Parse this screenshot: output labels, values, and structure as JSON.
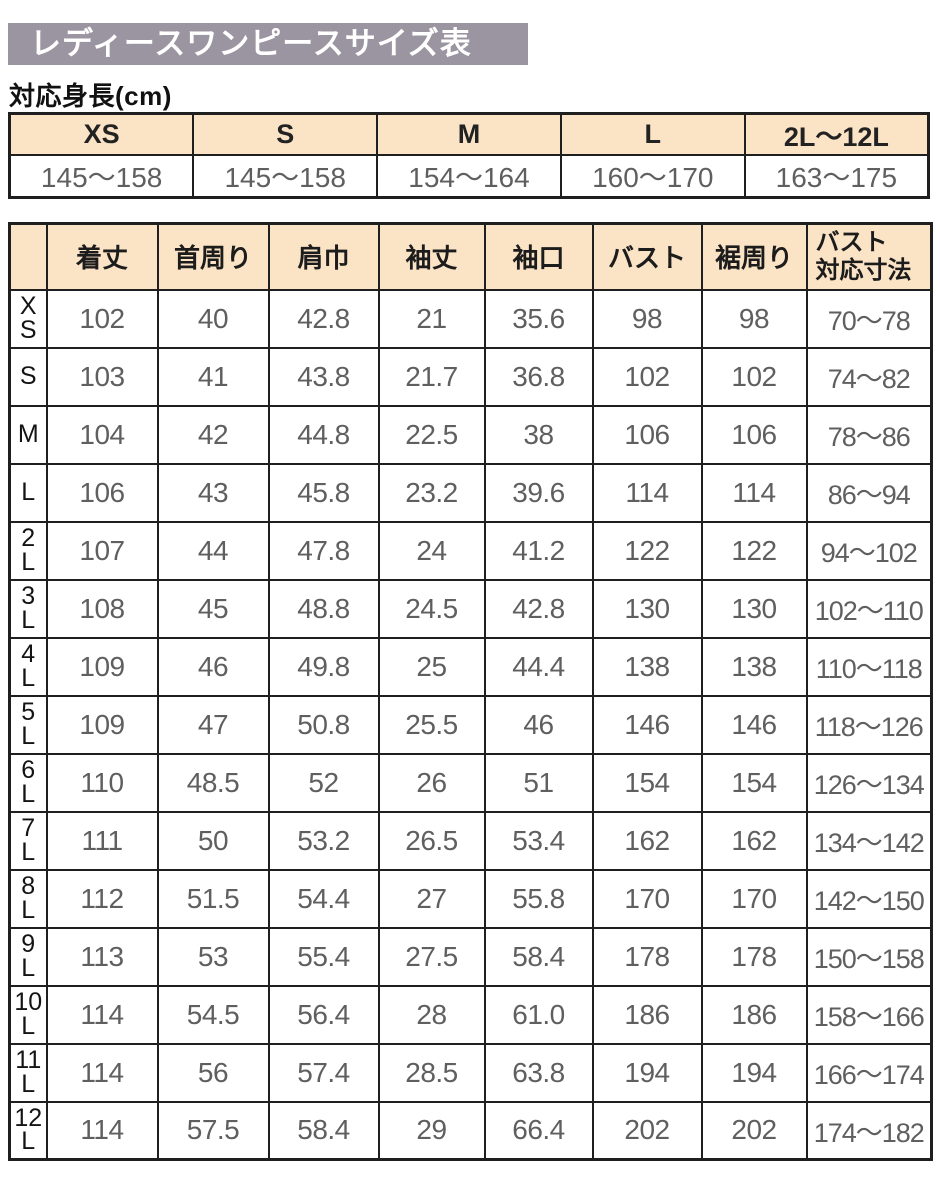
{
  "title": {
    "text": "レディースワンピースサイズ表"
  },
  "colors": {
    "title_bg": "#9B95A1",
    "title_text": "#FFFFFF",
    "header_bg": "#FBE3C5",
    "border": "#1F1F1F",
    "value_text": "#5F5F5F",
    "label_text": "#141414"
  },
  "height_section": {
    "label": "対応身長(cm)",
    "table": {
      "headers": [
        "XS",
        "S",
        "M",
        "L",
        "2L〜12L"
      ],
      "values": [
        "145〜158",
        "145〜158",
        "154〜164",
        "160〜170",
        "163〜175"
      ]
    }
  },
  "size_table": {
    "corner_label": "",
    "columns": [
      "着丈",
      "首周り",
      "肩巾",
      "袖丈",
      "袖口",
      "バスト",
      "裾周り",
      "バスト\n対応寸法"
    ],
    "rows": [
      {
        "size": "X\nS",
        "values": [
          "102",
          "40",
          "42.8",
          "21",
          "35.6",
          "98",
          "98",
          "70〜78"
        ]
      },
      {
        "size": "S",
        "values": [
          "103",
          "41",
          "43.8",
          "21.7",
          "36.8",
          "102",
          "102",
          "74〜82"
        ]
      },
      {
        "size": "M",
        "values": [
          "104",
          "42",
          "44.8",
          "22.5",
          "38",
          "106",
          "106",
          "78〜86"
        ]
      },
      {
        "size": "L",
        "values": [
          "106",
          "43",
          "45.8",
          "23.2",
          "39.6",
          "114",
          "114",
          "86〜94"
        ]
      },
      {
        "size": "2\nL",
        "values": [
          "107",
          "44",
          "47.8",
          "24",
          "41.2",
          "122",
          "122",
          "94〜102"
        ]
      },
      {
        "size": "3\nL",
        "values": [
          "108",
          "45",
          "48.8",
          "24.5",
          "42.8",
          "130",
          "130",
          "102〜110"
        ]
      },
      {
        "size": "4\nL",
        "values": [
          "109",
          "46",
          "49.8",
          "25",
          "44.4",
          "138",
          "138",
          "110〜118"
        ]
      },
      {
        "size": "5\nL",
        "values": [
          "109",
          "47",
          "50.8",
          "25.5",
          "46",
          "146",
          "146",
          "118〜126"
        ]
      },
      {
        "size": "6\nL",
        "values": [
          "110",
          "48.5",
          "52",
          "26",
          "51",
          "154",
          "154",
          "126〜134"
        ]
      },
      {
        "size": "7\nL",
        "values": [
          "111",
          "50",
          "53.2",
          "26.5",
          "53.4",
          "162",
          "162",
          "134〜142"
        ]
      },
      {
        "size": "8\nL",
        "values": [
          "112",
          "51.5",
          "54.4",
          "27",
          "55.8",
          "170",
          "170",
          "142〜150"
        ]
      },
      {
        "size": "9\nL",
        "values": [
          "113",
          "53",
          "55.4",
          "27.5",
          "58.4",
          "178",
          "178",
          "150〜158"
        ]
      },
      {
        "size": "10\nL",
        "values": [
          "114",
          "54.5",
          "56.4",
          "28",
          "61.0",
          "186",
          "186",
          "158〜166"
        ]
      },
      {
        "size": "11\nL",
        "values": [
          "114",
          "56",
          "57.4",
          "28.5",
          "63.8",
          "194",
          "194",
          "166〜174"
        ]
      },
      {
        "size": "12\nL",
        "values": [
          "114",
          "57.5",
          "58.4",
          "29",
          "66.4",
          "202",
          "202",
          "174〜182"
        ]
      }
    ]
  }
}
